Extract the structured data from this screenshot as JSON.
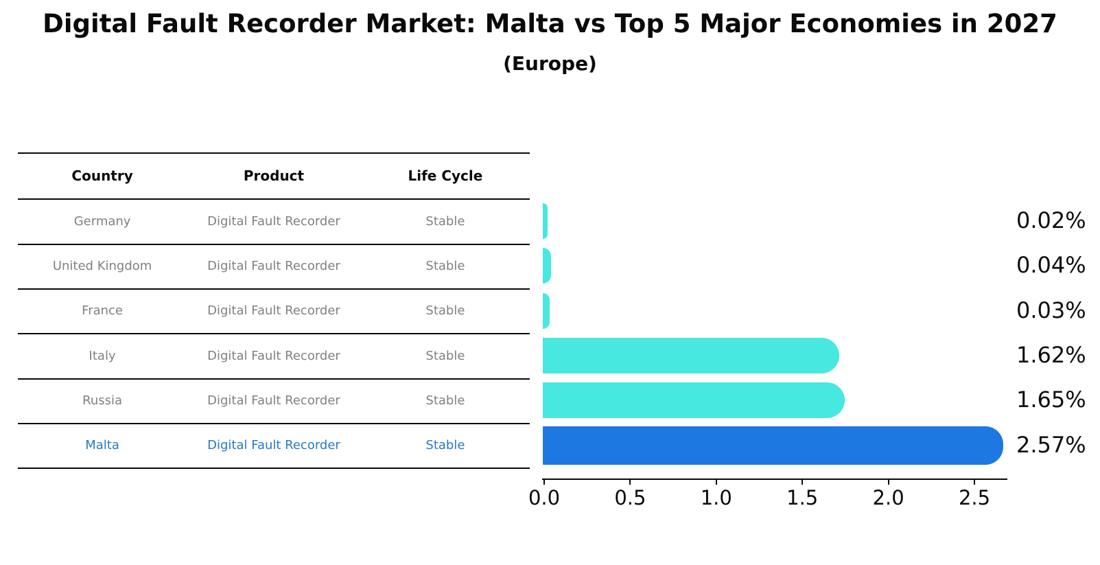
{
  "title": "Digital Fault Recorder Market: Malta vs Top 5 Major Economies in 2027",
  "subtitle": "(Europe)",
  "table": {
    "headers": [
      "Country",
      "Product",
      "Life Cycle"
    ],
    "rows": [
      {
        "country": "Germany",
        "product": "Digital Fault Recorder",
        "life_cycle": "Stable",
        "highlight": false
      },
      {
        "country": "United Kingdom",
        "product": "Digital Fault Recorder",
        "life_cycle": "Stable",
        "highlight": false
      },
      {
        "country": "France",
        "product": "Digital Fault Recorder",
        "life_cycle": "Stable",
        "highlight": false
      },
      {
        "country": "Italy",
        "product": "Digital Fault Recorder",
        "life_cycle": "Stable",
        "highlight": false
      },
      {
        "country": "Russia",
        "product": "Digital Fault Recorder",
        "life_cycle": "Stable",
        "highlight": false
      },
      {
        "country": "Malta",
        "product": "Digital Fault Recorder",
        "life_cycle": "Stable",
        "highlight": true
      }
    ]
  },
  "chart_data": {
    "type": "bar",
    "orientation": "horizontal",
    "title": "Digital Fault Recorder Market: Malta vs Top 5 Major Economies in 2027",
    "subtitle": "(Europe)",
    "categories": [
      "Germany",
      "United Kingdom",
      "France",
      "Italy",
      "Russia",
      "Malta"
    ],
    "values": [
      0.02,
      0.04,
      0.03,
      1.62,
      1.65,
      2.57
    ],
    "value_labels": [
      "0.02%",
      "0.04%",
      "0.03%",
      "1.62%",
      "1.65%",
      "2.57%"
    ],
    "unit": "%",
    "x_ticks": [
      "0.0",
      "0.5",
      "1.0",
      "1.5",
      "2.0",
      "2.5"
    ],
    "xlim": [
      0,
      2.7
    ],
    "grid": false,
    "legend": false,
    "highlight_category": "Malta",
    "colors": {
      "bar_default": "#46E8E0",
      "bar_highlight": "#1E78E1",
      "highlight_text": "#2878C8",
      "row_text": "#808080",
      "header_text": "#0a0a0a",
      "axis": "#0a0a0a",
      "value_label": "#0e0e0e",
      "background": "#ffffff"
    }
  }
}
